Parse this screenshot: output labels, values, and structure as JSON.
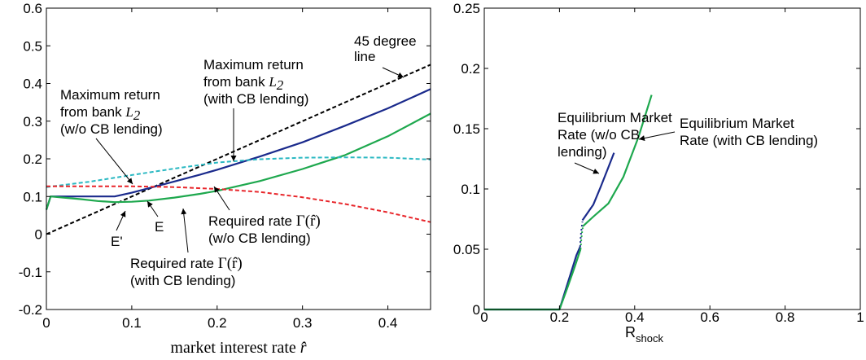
{
  "chart_data": [
    {
      "type": "line",
      "xlabel_text": "market interest rate ",
      "xlabel_symbol": "r̂",
      "xlim": [
        0,
        0.45
      ],
      "ylim": [
        -0.2,
        0.6
      ],
      "xticks": [
        0,
        0.1,
        0.2,
        0.3,
        0.4
      ],
      "xtick_labels": [
        "0",
        "0.1",
        "0.2",
        "0.3",
        "0.4"
      ],
      "yticks": [
        -0.2,
        -0.1,
        0,
        0.1,
        0.2,
        0.3,
        0.4,
        0.5,
        0.6
      ],
      "ytick_labels": [
        "-0.2",
        "-0.1",
        "0",
        "0.1",
        "0.2",
        "0.3",
        "0.4",
        "0.5",
        "0.6"
      ],
      "series": [
        {
          "color": "#000000",
          "style": "dashed",
          "x": [
            0,
            0.45
          ],
          "y": [
            0,
            0.45
          ]
        },
        {
          "color": "#1a2a8c",
          "style": "solid",
          "x": [
            0,
            0.005,
            0.03,
            0.05,
            0.08,
            0.1,
            0.12,
            0.15,
            0.18,
            0.2,
            0.25,
            0.3,
            0.35,
            0.4,
            0.45
          ],
          "y": [
            0.065,
            0.1,
            0.1,
            0.1,
            0.1,
            0.11,
            0.122,
            0.14,
            0.158,
            0.171,
            0.206,
            0.244,
            0.288,
            0.334,
            0.385
          ]
        },
        {
          "color": "#1ea84e",
          "style": "solid",
          "x": [
            0,
            0.005,
            0.02,
            0.04,
            0.06,
            0.08,
            0.1,
            0.12,
            0.15,
            0.18,
            0.2,
            0.25,
            0.3,
            0.35,
            0.4,
            0.45
          ],
          "y": [
            0.065,
            0.1,
            0.097,
            0.093,
            0.088,
            0.085,
            0.086,
            0.089,
            0.097,
            0.107,
            0.115,
            0.141,
            0.173,
            0.21,
            0.26,
            0.32
          ]
        },
        {
          "color": "#2ab8c2",
          "style": "dashed",
          "x": [
            0,
            0.05,
            0.1,
            0.15,
            0.2,
            0.25,
            0.3,
            0.35,
            0.4,
            0.45
          ],
          "y": [
            0.125,
            0.139,
            0.157,
            0.174,
            0.19,
            0.199,
            0.203,
            0.204,
            0.203,
            0.198
          ]
        },
        {
          "color": "#e8262b",
          "style": "dashed",
          "x": [
            0,
            0.05,
            0.1,
            0.15,
            0.2,
            0.25,
            0.3,
            0.35,
            0.4,
            0.45
          ],
          "y": [
            0.127,
            0.127,
            0.127,
            0.125,
            0.12,
            0.112,
            0.098,
            0.08,
            0.058,
            0.032
          ]
        }
      ],
      "annotations": {
        "line45_a": "45 degree",
        "line45_b": "line",
        "maxret_cb_a": "Maximum return",
        "maxret_cb_b": "from bank ",
        "maxret_cb_c": "(with CB lending)",
        "maxret_wo_a": "Maximum return",
        "maxret_wo_b": "from bank ",
        "maxret_wo_c": "(w/o  CB lending)",
        "l2_symbol": "L",
        "l2_sub": "2",
        "req_wo_a": "Required rate ",
        "req_wo_b": "(w/o CB lending)",
        "req_cb_a": "Required rate ",
        "req_cb_b": "(with CB lending)",
        "gamma_expr": "Γ(r̂)",
        "point_e": "E",
        "point_eprime": "E'"
      }
    },
    {
      "type": "line",
      "xlabel_main": "R",
      "xlabel_sub": "shock",
      "xlim": [
        0,
        1
      ],
      "ylim": [
        0,
        0.25
      ],
      "xticks": [
        0,
        0.2,
        0.4,
        0.6,
        0.8,
        1
      ],
      "xtick_labels": [
        "0",
        "0.2",
        "0.4",
        "0.6",
        "0.8",
        "1"
      ],
      "yticks": [
        0,
        0.05,
        0.1,
        0.15,
        0.2,
        0.25
      ],
      "ytick_labels": [
        "0",
        "0.05",
        "0.1",
        "0.15",
        "0.2",
        "0.25"
      ],
      "series": [
        {
          "color": "#1a2a8c",
          "style": "solid",
          "x": [
            0,
            0.2,
            0.215,
            0.23,
            0.245,
            0.255
          ],
          "y": [
            0,
            0,
            0.015,
            0.03,
            0.045,
            0.052
          ]
        },
        {
          "color": "#1a2a8c",
          "style": "dotted",
          "x": [
            0.255,
            0.257,
            0.259,
            0.261
          ],
          "y": [
            0.052,
            0.062,
            0.068,
            0.073
          ]
        },
        {
          "color": "#1a2a8c",
          "style": "solid",
          "x": [
            0.261,
            0.29,
            0.31,
            0.33,
            0.345
          ],
          "y": [
            0.074,
            0.087,
            0.102,
            0.118,
            0.13
          ]
        },
        {
          "color": "#1ea84e",
          "style": "solid",
          "x": [
            0,
            0.2,
            0.22,
            0.24,
            0.256
          ],
          "y": [
            0,
            0,
            0.017,
            0.035,
            0.05
          ]
        },
        {
          "color": "#1ea84e",
          "style": "dotted",
          "x": [
            0.256,
            0.258,
            0.26,
            0.262
          ],
          "y": [
            0.05,
            0.058,
            0.064,
            0.068
          ]
        },
        {
          "color": "#1ea84e",
          "style": "solid",
          "x": [
            0.262,
            0.29,
            0.33,
            0.37,
            0.41,
            0.445
          ],
          "y": [
            0.069,
            0.077,
            0.088,
            0.11,
            0.143,
            0.178
          ]
        }
      ],
      "annotations": {
        "eq_wo_a": "Equilibrium Market",
        "eq_wo_b": "Rate (w/o CB",
        "eq_wo_c": "lending)",
        "eq_cb_a": "Equilibrium Market",
        "eq_cb_b": "Rate (with CB lending)"
      }
    }
  ]
}
